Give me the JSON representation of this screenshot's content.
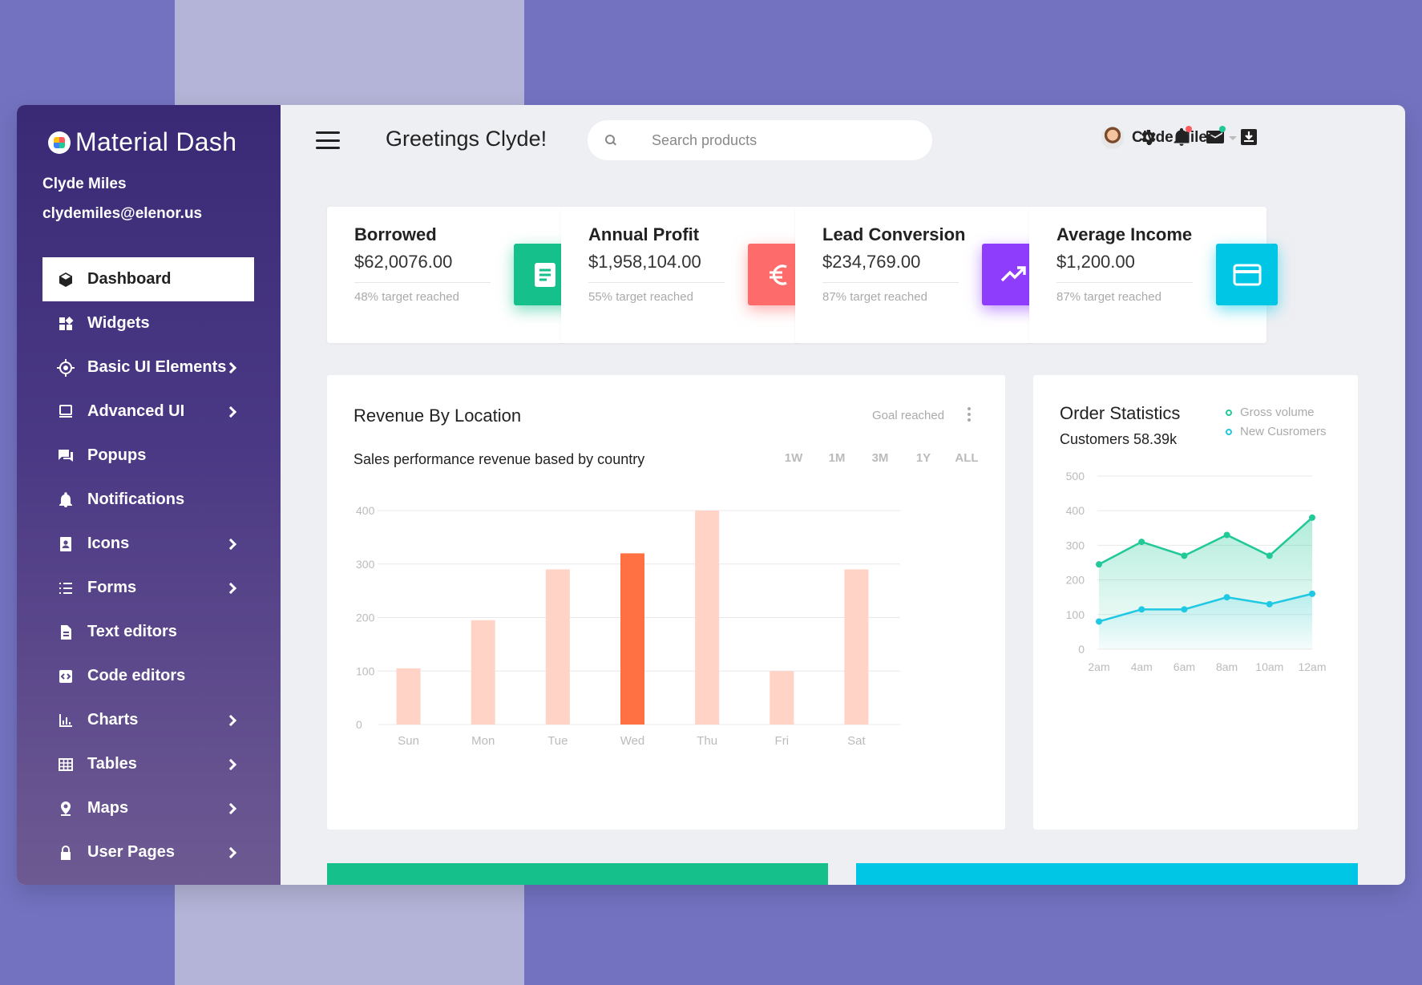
{
  "sidebar": {
    "brand": "Material Dash",
    "user_name": "Clyde Miles",
    "user_email": "clydemiles@elenor.us",
    "items": [
      {
        "label": "Dashboard",
        "icon": "cube-icon",
        "active": true,
        "chevron": false
      },
      {
        "label": "Widgets",
        "icon": "widgets-icon",
        "active": false,
        "chevron": false
      },
      {
        "label": "Basic UI Elements",
        "icon": "target-icon",
        "active": false,
        "chevron": true
      },
      {
        "label": "Advanced UI",
        "icon": "laptop-icon",
        "active": false,
        "chevron": true
      },
      {
        "label": "Popups",
        "icon": "chat-icon",
        "active": false,
        "chevron": false
      },
      {
        "label": "Notifications",
        "icon": "bell-icon",
        "active": false,
        "chevron": false
      },
      {
        "label": "Icons",
        "icon": "contact-icon",
        "active": false,
        "chevron": true
      },
      {
        "label": "Forms",
        "icon": "list-icon",
        "active": false,
        "chevron": true
      },
      {
        "label": "Text editors",
        "icon": "document-icon",
        "active": false,
        "chevron": false
      },
      {
        "label": "Code editors",
        "icon": "code-icon",
        "active": false,
        "chevron": false
      },
      {
        "label": "Charts",
        "icon": "bar-chart-icon",
        "active": false,
        "chevron": true
      },
      {
        "label": "Tables",
        "icon": "table-icon",
        "active": false,
        "chevron": true
      },
      {
        "label": "Maps",
        "icon": "map-pin-icon",
        "active": false,
        "chevron": true
      },
      {
        "label": "User Pages",
        "icon": "lock-icon",
        "active": false,
        "chevron": true
      }
    ]
  },
  "header": {
    "greeting": "Greetings Clyde!",
    "search_placeholder": "Search products",
    "user_name": "Clyde Miles"
  },
  "stats": [
    {
      "title": "Borrowed",
      "value": "$62,0076.00",
      "note": "48% target reached",
      "color": "#15c08a",
      "icon": "document-icon"
    },
    {
      "title": "Annual Profit",
      "value": "$1,958,104.00",
      "note": "55% target reached",
      "color": "#fd6c6b",
      "icon": "euro-icon"
    },
    {
      "title": "Lead Conversion",
      "value": "$234,769.00",
      "note": "87% target reached",
      "color": "#8f3dfd",
      "icon": "trending-up-icon"
    },
    {
      "title": "Average Income",
      "value": "$1,200.00",
      "note": "87% target reached",
      "color": "#00c6e6",
      "icon": "credit-card-icon"
    }
  ],
  "revenue": {
    "title": "Revenue By Location",
    "subtitle": "Sales performance revenue based by country",
    "goal_label": "Goal reached",
    "ranges": [
      "1W",
      "1M",
      "3M",
      "1Y",
      "ALL"
    ]
  },
  "orders": {
    "title": "Order Statistics",
    "subtitle": "Customers 58.39k",
    "legend": [
      {
        "name": "Gross volume",
        "color": "#20c997"
      },
      {
        "name": "New Cusromers",
        "color": "#1fc8e3"
      }
    ]
  },
  "chart_data": [
    {
      "type": "bar",
      "categories": [
        "Sun",
        "Mon",
        "Tue",
        "Wed",
        "Thu",
        "Fri",
        "Sat"
      ],
      "values": [
        105,
        195,
        290,
        320,
        400,
        100,
        290
      ],
      "highlight_index": 3,
      "bar_color": "#ffd3c6",
      "highlight_color": "#ff7043",
      "yticks": [
        0,
        100,
        200,
        300,
        400
      ],
      "ylim": [
        0,
        400
      ],
      "grid": true
    },
    {
      "type": "area",
      "x": [
        "2am",
        "4am",
        "6am",
        "8am",
        "10am",
        "12am"
      ],
      "series": [
        {
          "name": "Gross volume",
          "values": [
            245,
            310,
            270,
            330,
            270,
            380
          ],
          "color": "#20c997"
        },
        {
          "name": "New Cusromers",
          "values": [
            80,
            115,
            115,
            150,
            130,
            160
          ],
          "color": "#1fc8e3"
        }
      ],
      "yticks": [
        0,
        100,
        200,
        300,
        400,
        500
      ],
      "ylim": [
        0,
        500
      ],
      "grid": true
    }
  ],
  "bottom_bars": [
    {
      "color": "#15c08a"
    },
    {
      "color": "#00c6e6"
    }
  ]
}
